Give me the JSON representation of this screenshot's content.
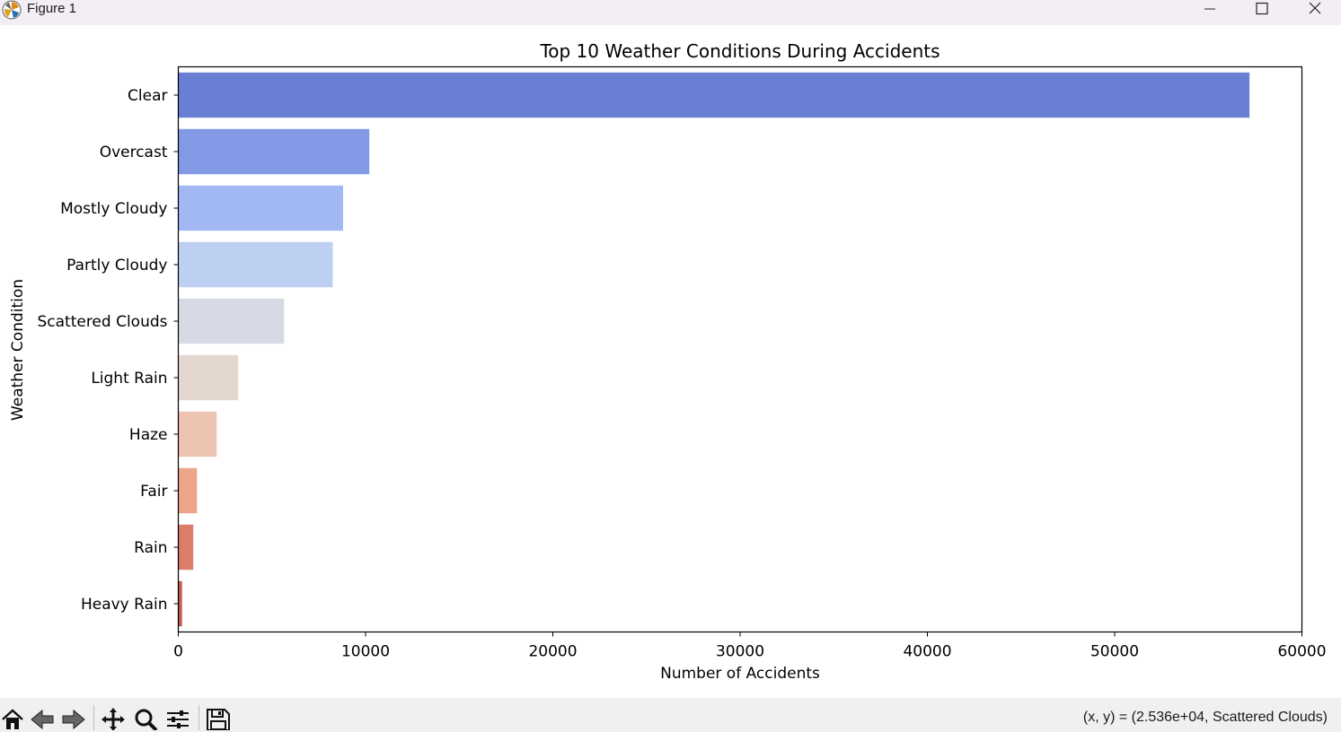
{
  "window": {
    "title": "Figure 1",
    "controls": [
      "minimize-icon",
      "maximize-icon",
      "close-icon"
    ]
  },
  "toolbar": {
    "buttons": [
      "home-icon",
      "back-icon",
      "forward-icon",
      "pan-icon",
      "zoom-icon",
      "configure-subplots-icon",
      "save-icon"
    ],
    "coords_text": "(x, y) = (2.536e+04, Scattered Clouds)"
  },
  "chart_data": {
    "type": "bar",
    "orientation": "horizontal",
    "title": "Top 10 Weather Conditions During Accidents",
    "xlabel": "Number of Accidents",
    "ylabel": "Weather Condition",
    "categories": [
      "Clear",
      "Overcast",
      "Mostly Cloudy",
      "Partly Cloudy",
      "Scattered Clouds",
      "Light Rain",
      "Haze",
      "Fair",
      "Rain",
      "Heavy Rain"
    ],
    "values": [
      57200,
      10200,
      8800,
      8250,
      5650,
      3200,
      2050,
      1000,
      800,
      200
    ],
    "colors": [
      "#6a7fd3",
      "#8299e6",
      "#a1b8f3",
      "#bdd0f2",
      "#d5dae5",
      "#e4d7cf",
      "#ecc4b1",
      "#eca48a",
      "#db7d68",
      "#c45a57"
    ],
    "xlim": [
      0,
      60000
    ],
    "xticks": [
      0,
      10000,
      20000,
      30000,
      40000,
      50000,
      60000
    ],
    "xtick_labels": [
      "0",
      "10000",
      "20000",
      "30000",
      "40000",
      "50000",
      "60000"
    ],
    "grid": false,
    "legend": "none"
  }
}
